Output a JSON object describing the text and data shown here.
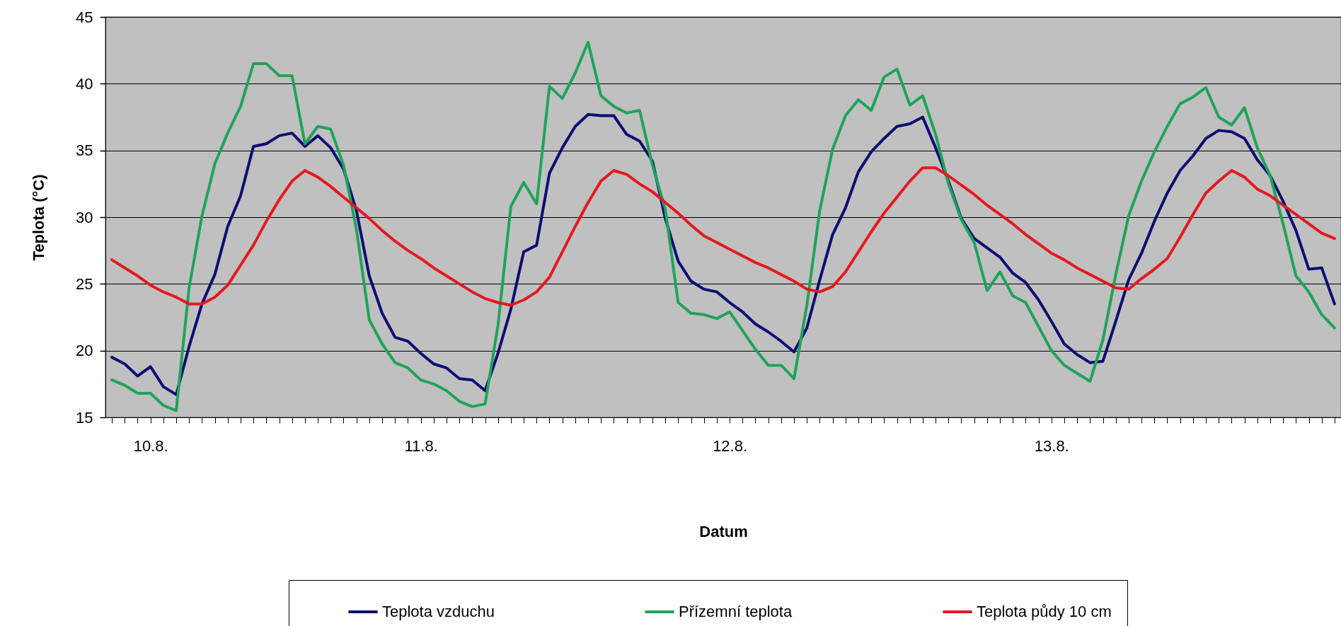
{
  "chart_data": {
    "type": "line",
    "xlabel": "Datum",
    "ylabel": "Teplota (°C)",
    "ylim": [
      15,
      45
    ],
    "yticks": [
      15,
      20,
      25,
      30,
      35,
      40,
      45
    ],
    "grid": "y",
    "legend": "bottom",
    "line_style": "solid",
    "categories": [
      null,
      null,
      null,
      "10.8.",
      null,
      null,
      null,
      null,
      null,
      null,
      null,
      null,
      null,
      null,
      null,
      null,
      null,
      null,
      null,
      null,
      null,
      null,
      null,
      null,
      "11.8.",
      null,
      null,
      null,
      null,
      null,
      null,
      null,
      null,
      null,
      null,
      null,
      null,
      null,
      null,
      null,
      null,
      null,
      null,
      null,
      null,
      null,
      null,
      null,
      "12.8.",
      null,
      null,
      null,
      null,
      null,
      null,
      null,
      null,
      null,
      null,
      null,
      null,
      null,
      null,
      null,
      null,
      null,
      null,
      null,
      null,
      null,
      null,
      null,
      null,
      "13.8.",
      null,
      null,
      null,
      null,
      null,
      null,
      null,
      null,
      null,
      null,
      null,
      null,
      null,
      null,
      null,
      null,
      null,
      null,
      null,
      null,
      null,
      null
    ],
    "series": [
      {
        "name": "Teplota vzduchu",
        "color": "#0d0d73",
        "values": [
          19.5,
          19.0,
          18.1,
          18.8,
          17.3,
          16.7,
          20.3,
          23.5,
          25.7,
          29.3,
          31.6,
          35.3,
          35.5,
          36.1,
          36.3,
          35.3,
          36.1,
          35.2,
          33.6,
          30.5,
          25.6,
          22.8,
          21.0,
          20.7,
          19.8,
          19.0,
          18.7,
          17.9,
          17.8,
          17.0,
          19.8,
          23.1,
          27.4,
          27.9,
          33.3,
          35.2,
          36.8,
          37.7,
          37.6,
          37.6,
          36.2,
          35.7,
          34.2,
          29.9,
          26.7,
          25.2,
          24.6,
          24.4,
          23.6,
          22.9,
          22.0,
          21.4,
          20.7,
          19.9,
          21.7,
          25.3,
          28.7,
          30.7,
          33.4,
          34.9,
          35.9,
          36.8,
          37.0,
          37.5,
          35.2,
          32.7,
          29.9,
          28.4,
          27.7,
          27.0,
          25.8,
          25.1,
          23.8,
          22.2,
          20.5,
          19.7,
          19.1,
          19.2,
          22.2,
          25.3,
          27.3,
          29.7,
          31.8,
          33.5,
          34.6,
          35.9,
          36.5,
          36.4,
          35.9,
          34.3,
          33.1,
          31.2,
          29.0,
          26.1,
          26.2,
          23.5
        ]
      },
      {
        "name": "Přízemní teplota",
        "color": "#1fa35a",
        "values": [
          17.8,
          17.4,
          16.8,
          16.8,
          15.9,
          15.5,
          24.7,
          30.1,
          34.0,
          36.3,
          38.3,
          41.5,
          41.5,
          40.6,
          40.6,
          35.5,
          36.8,
          36.6,
          33.9,
          29.1,
          22.3,
          20.5,
          19.1,
          18.7,
          17.8,
          17.5,
          17.0,
          16.2,
          15.8,
          16.0,
          21.9,
          30.8,
          32.6,
          31.0,
          39.8,
          38.9,
          40.8,
          43.1,
          39.1,
          38.3,
          37.8,
          38.0,
          33.9,
          30.6,
          23.6,
          22.8,
          22.7,
          22.4,
          22.9,
          21.5,
          20.1,
          18.9,
          18.9,
          17.9,
          23.4,
          30.5,
          35.1,
          37.6,
          38.8,
          38.0,
          40.5,
          41.1,
          38.4,
          39.1,
          36.2,
          32.5,
          29.8,
          28.1,
          24.5,
          25.9,
          24.1,
          23.6,
          21.8,
          20.0,
          18.9,
          18.3,
          17.7,
          20.8,
          25.7,
          30.1,
          32.7,
          34.9,
          36.8,
          38.5,
          39.0,
          39.7,
          37.5,
          36.9,
          38.2,
          35.2,
          33.1,
          29.5,
          25.6,
          24.4,
          22.7,
          21.7
        ]
      },
      {
        "name": "Teplota půdy 10 cm",
        "color": "#e3191f",
        "values": [
          26.8,
          26.2,
          25.6,
          24.9,
          24.4,
          24.0,
          23.5,
          23.5,
          24.0,
          24.9,
          26.4,
          27.9,
          29.7,
          31.3,
          32.7,
          33.5,
          33.0,
          32.3,
          31.5,
          30.7,
          29.9,
          29.0,
          28.2,
          27.5,
          26.9,
          26.2,
          25.6,
          25.0,
          24.4,
          23.9,
          23.6,
          23.4,
          23.8,
          24.4,
          25.5,
          27.4,
          29.3,
          31.1,
          32.7,
          33.5,
          33.2,
          32.5,
          31.9,
          31.1,
          30.3,
          29.4,
          28.6,
          28.1,
          27.6,
          27.1,
          26.6,
          26.2,
          25.7,
          25.2,
          24.6,
          24.4,
          24.8,
          25.9,
          27.4,
          28.9,
          30.3,
          31.5,
          32.7,
          33.7,
          33.7,
          33.1,
          32.4,
          31.7,
          30.9,
          30.2,
          29.5,
          28.7,
          28.0,
          27.3,
          26.8,
          26.2,
          25.7,
          25.2,
          24.7,
          24.6,
          25.4,
          26.1,
          26.9,
          28.5,
          30.2,
          31.8,
          32.7,
          33.5,
          33.0,
          32.1,
          31.6,
          30.9,
          30.2,
          29.5,
          28.8,
          28.4
        ]
      }
    ]
  }
}
